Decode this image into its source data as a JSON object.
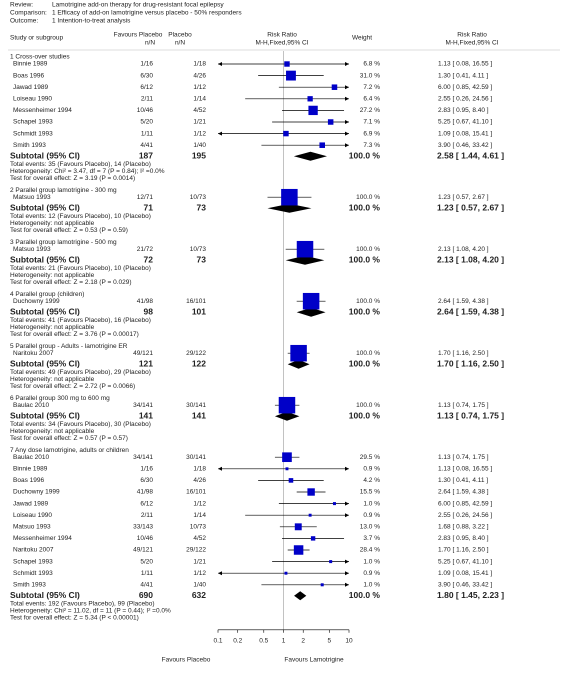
{
  "chart_data": {
    "type": "forest",
    "header": [
      {
        "label": "Review:",
        "text": "Lamotrigine add-on therapy for drug-resistant focal epilepsy"
      },
      {
        "label": "Comparison:",
        "text": "1 Efficacy of add-on lamotrigine versus placebo - 50% responders"
      },
      {
        "label": "Outcome:",
        "text": "1 Intention-to-treat analysis"
      }
    ],
    "columns": [
      {
        "title": "Study or subgroup"
      },
      {
        "title": "Favours Placebo",
        "sub": "n/N"
      },
      {
        "title": "Placebo",
        "sub": "n/N"
      },
      {
        "title": "Risk Ratio",
        "sub": "M-H,Fixed,95% CI"
      },
      {
        "title": "Weight"
      },
      {
        "title": "Risk Ratio",
        "sub": "M-H,Fixed,95% CI"
      }
    ],
    "log": true,
    "xlim": [
      0.1,
      10
    ],
    "xticks": [
      0.1,
      0.2,
      0.5,
      1,
      2,
      5,
      10
    ],
    "reference_line": 1,
    "x_label_left": "Favours Placebo",
    "x_label_right": "Favours Lamotrigine",
    "color": "#0000c8",
    "groups": [
      {
        "title": "1 Cross-over studies",
        "studies": [
          {
            "name": "Binnie 1989",
            "treat": "1/16",
            "ctrl": "1/18",
            "weight": 6.8,
            "weight_label": "6.8 %",
            "rr": 1.13,
            "lo": 0.08,
            "hi": 16.55,
            "ci_label": "1.13 [ 0.08, 16.55 ]"
          },
          {
            "name": "Boas 1996",
            "treat": "6/30",
            "ctrl": "4/26",
            "weight": 31.0,
            "weight_label": "31.0 %",
            "rr": 1.3,
            "lo": 0.41,
            "hi": 4.11,
            "ci_label": "1.30 [ 0.41, 4.11 ]"
          },
          {
            "name": "Jawad 1989",
            "treat": "6/12",
            "ctrl": "1/12",
            "weight": 7.2,
            "weight_label": "7.2 %",
            "rr": 6.0,
            "lo": 0.85,
            "hi": 42.59,
            "ci_label": "6.00 [ 0.85, 42.59 ]"
          },
          {
            "name": "Loiseau 1990",
            "treat": "2/11",
            "ctrl": "1/14",
            "weight": 6.4,
            "weight_label": "6.4 %",
            "rr": 2.55,
            "lo": 0.26,
            "hi": 24.56,
            "ci_label": "2.55 [ 0.26, 24.56 ]"
          },
          {
            "name": "Messenheimer 1994",
            "treat": "10/46",
            "ctrl": "4/52",
            "weight": 27.2,
            "weight_label": "27.2 %",
            "rr": 2.83,
            "lo": 0.95,
            "hi": 8.4,
            "ci_label": "2.83 [ 0.95, 8.40 ]"
          },
          {
            "name": "Schapel 1993",
            "treat": "5/20",
            "ctrl": "1/21",
            "weight": 7.1,
            "weight_label": "7.1 %",
            "rr": 5.25,
            "lo": 0.67,
            "hi": 41.1,
            "ci_label": "5.25 [ 0.67, 41.10 ]"
          },
          {
            "name": "Schmidt 1993",
            "treat": "1/11",
            "ctrl": "1/12",
            "weight": 6.9,
            "weight_label": "6.9 %",
            "rr": 1.09,
            "lo": 0.08,
            "hi": 15.41,
            "ci_label": "1.09 [ 0.08, 15.41 ]"
          },
          {
            "name": "Smith 1993",
            "treat": "4/41",
            "ctrl": "1/40",
            "weight": 7.3,
            "weight_label": "7.3 %",
            "rr": 3.9,
            "lo": 0.46,
            "hi": 33.42,
            "ci_label": "3.90 [ 0.46, 33.42 ]"
          }
        ],
        "subtotal": {
          "label": "Subtotal (95% CI)",
          "treat_total": 187,
          "ctrl_total": 195,
          "weight_label": "100.0 %",
          "rr": 2.58,
          "lo": 1.44,
          "hi": 4.61,
          "ci_label": "2.58 [ 1.44, 4.61 ]"
        },
        "notes": [
          "Total events: 35 (Favours Placebo), 14 (Placebo)",
          "Heterogeneity: Chi² = 3.47, df = 7 (P = 0.84); I² =0.0%",
          "Test for overall effect: Z = 3.19 (P = 0.0014)"
        ]
      },
      {
        "title": "2 Parallel group lamotrigine - 300 mg",
        "studies": [
          {
            "name": "Matsuo 1993",
            "treat": "12/71",
            "ctrl": "10/73",
            "weight": 100.0,
            "weight_label": "100.0 %",
            "rr": 1.23,
            "lo": 0.57,
            "hi": 2.67,
            "ci_label": "1.23 [ 0.57, 2.67 ]"
          }
        ],
        "subtotal": {
          "label": "Subtotal (95% CI)",
          "treat_total": 71,
          "ctrl_total": 73,
          "weight_label": "100.0 %",
          "rr": 1.23,
          "lo": 0.57,
          "hi": 2.67,
          "ci_label": "1.23 [ 0.57, 2.67 ]"
        },
        "notes": [
          "Total events: 12 (Favours Placebo), 10 (Placebo)",
          "Heterogeneity: not applicable",
          "Test for overall effect: Z = 0.53 (P = 0.59)"
        ]
      },
      {
        "title": "3 Parallel group lamotrigine - 500 mg",
        "studies": [
          {
            "name": "Matsuo 1993",
            "treat": "21/72",
            "ctrl": "10/73",
            "weight": 100.0,
            "weight_label": "100.0 %",
            "rr": 2.13,
            "lo": 1.08,
            "hi": 4.2,
            "ci_label": "2.13 [ 1.08, 4.20 ]"
          }
        ],
        "subtotal": {
          "label": "Subtotal (95% CI)",
          "treat_total": 72,
          "ctrl_total": 73,
          "weight_label": "100.0 %",
          "rr": 2.13,
          "lo": 1.08,
          "hi": 4.2,
          "ci_label": "2.13 [ 1.08, 4.20 ]"
        },
        "notes": [
          "Total events: 21 (Favours Placebo), 10 (Placebo)",
          "Heterogeneity: not applicable",
          "Test for overall effect: Z = 2.18 (P = 0.029)"
        ]
      },
      {
        "title": "4 Parallel group (children)",
        "studies": [
          {
            "name": "Duchowny 1999",
            "treat": "41/98",
            "ctrl": "16/101",
            "weight": 100.0,
            "weight_label": "100.0 %",
            "rr": 2.64,
            "lo": 1.59,
            "hi": 4.38,
            "ci_label": "2.64 [ 1.59, 4.38 ]"
          }
        ],
        "subtotal": {
          "label": "Subtotal (95% CI)",
          "treat_total": 98,
          "ctrl_total": 101,
          "weight_label": "100.0 %",
          "rr": 2.64,
          "lo": 1.59,
          "hi": 4.38,
          "ci_label": "2.64 [ 1.59, 4.38 ]"
        },
        "notes": [
          "Total events: 41 (Favours Placebo), 16 (Placebo)",
          "Heterogeneity: not applicable",
          "Test for overall effect: Z = 3.76 (P = 0.00017)"
        ]
      },
      {
        "title": "5 Parallel group - Adults - lamotrigine ER",
        "studies": [
          {
            "name": "Naritoku 2007",
            "treat": "49/121",
            "ctrl": "29/122",
            "weight": 100.0,
            "weight_label": "100.0 %",
            "rr": 1.7,
            "lo": 1.16,
            "hi": 2.5,
            "ci_label": "1.70 [ 1.16, 2.50 ]"
          }
        ],
        "subtotal": {
          "label": "Subtotal (95% CI)",
          "treat_total": 121,
          "ctrl_total": 122,
          "weight_label": "100.0 %",
          "rr": 1.7,
          "lo": 1.16,
          "hi": 2.5,
          "ci_label": "1.70 [ 1.16, 2.50 ]"
        },
        "notes": [
          "Total events: 49 (Favours Placebo), 29 (Placebo)",
          "Heterogeneity: not applicable",
          "Test for overall effect: Z = 2.72 (P = 0.0066)"
        ]
      },
      {
        "title": "6 Parallel group 300 mg to 600 mg",
        "studies": [
          {
            "name": "Baulac 2010",
            "treat": "34/141",
            "ctrl": "30/141",
            "weight": 100.0,
            "weight_label": "100.0 %",
            "rr": 1.13,
            "lo": 0.74,
            "hi": 1.75,
            "ci_label": "1.13 [ 0.74, 1.75 ]"
          }
        ],
        "subtotal": {
          "label": "Subtotal (95% CI)",
          "treat_total": 141,
          "ctrl_total": 141,
          "weight_label": "100.0 %",
          "rr": 1.13,
          "lo": 0.74,
          "hi": 1.75,
          "ci_label": "1.13 [ 0.74, 1.75 ]"
        },
        "notes": [
          "Total events: 34 (Favours Placebo), 30 (Placebo)",
          "Heterogeneity: not applicable",
          "Test for overall effect: Z = 0.57 (P = 0.57)"
        ]
      },
      {
        "title": "7 Any dose lamotrigine, adults or children",
        "studies": [
          {
            "name": "Baulac 2010",
            "treat": "34/141",
            "ctrl": "30/141",
            "weight": 29.5,
            "weight_label": "29.5 %",
            "rr": 1.13,
            "lo": 0.74,
            "hi": 1.75,
            "ci_label": "1.13 [ 0.74, 1.75 ]"
          },
          {
            "name": "Binnie 1989",
            "treat": "1/16",
            "ctrl": "1/18",
            "weight": 0.9,
            "weight_label": "0.9 %",
            "rr": 1.13,
            "lo": 0.08,
            "hi": 16.55,
            "ci_label": "1.13 [ 0.08, 16.55 ]"
          },
          {
            "name": "Boas 1996",
            "treat": "6/30",
            "ctrl": "4/26",
            "weight": 4.2,
            "weight_label": "4.2 %",
            "rr": 1.3,
            "lo": 0.41,
            "hi": 4.11,
            "ci_label": "1.30 [ 0.41, 4.11 ]"
          },
          {
            "name": "Duchowny 1999",
            "treat": "41/98",
            "ctrl": "16/101",
            "weight": 15.5,
            "weight_label": "15.5 %",
            "rr": 2.64,
            "lo": 1.59,
            "hi": 4.38,
            "ci_label": "2.64 [ 1.59, 4.38 ]"
          },
          {
            "name": "Jawad 1989",
            "treat": "6/12",
            "ctrl": "1/12",
            "weight": 1.0,
            "weight_label": "1.0 %",
            "rr": 6.0,
            "lo": 0.85,
            "hi": 42.59,
            "ci_label": "6.00 [ 0.85, 42.59 ]"
          },
          {
            "name": "Loiseau 1990",
            "treat": "2/11",
            "ctrl": "1/14",
            "weight": 0.9,
            "weight_label": "0.9 %",
            "rr": 2.55,
            "lo": 0.26,
            "hi": 24.56,
            "ci_label": "2.55 [ 0.26, 24.56 ]"
          },
          {
            "name": "Matsuo 1993",
            "treat": "33/143",
            "ctrl": "10/73",
            "weight": 13.0,
            "weight_label": "13.0 %",
            "rr": 1.68,
            "lo": 0.88,
            "hi": 3.22,
            "ci_label": "1.68 [ 0.88, 3.22 ]"
          },
          {
            "name": "Messenheimer 1994",
            "treat": "10/46",
            "ctrl": "4/52",
            "weight": 3.7,
            "weight_label": "3.7 %",
            "rr": 2.83,
            "lo": 0.95,
            "hi": 8.4,
            "ci_label": "2.83 [ 0.95, 8.40 ]"
          },
          {
            "name": "Naritoku 2007",
            "treat": "49/121",
            "ctrl": "29/122",
            "weight": 28.4,
            "weight_label": "28.4 %",
            "rr": 1.7,
            "lo": 1.16,
            "hi": 2.5,
            "ci_label": "1.70 [ 1.16, 2.50 ]"
          },
          {
            "name": "Schapel 1993",
            "treat": "5/20",
            "ctrl": "1/21",
            "weight": 1.0,
            "weight_label": "1.0 %",
            "rr": 5.25,
            "lo": 0.67,
            "hi": 41.1,
            "ci_label": "5.25 [ 0.67, 41.10 ]"
          },
          {
            "name": "Schmidt 1993",
            "treat": "1/11",
            "ctrl": "1/12",
            "weight": 0.9,
            "weight_label": "0.9 %",
            "rr": 1.09,
            "lo": 0.08,
            "hi": 15.41,
            "ci_label": "1.09 [ 0.08, 15.41 ]"
          },
          {
            "name": "Smith 1993",
            "treat": "4/41",
            "ctrl": "1/40",
            "weight": 1.0,
            "weight_label": "1.0 %",
            "rr": 3.9,
            "lo": 0.46,
            "hi": 33.42,
            "ci_label": "3.90 [ 0.46, 33.42 ]"
          }
        ],
        "subtotal": {
          "label": "Subtotal (95% CI)",
          "treat_total": 690,
          "ctrl_total": 632,
          "weight_label": "100.0 %",
          "rr": 1.8,
          "lo": 1.45,
          "hi": 2.23,
          "ci_label": "1.80 [ 1.45, 2.23 ]"
        },
        "notes": [
          "Total events: 192 (Favours Placebo), 99 (Placebo)",
          "Heterogeneity: Chi² = 11.02, df = 11 (P = 0.44); I² =0.0%",
          "Test for overall effect: Z = 5.34 (P < 0.00001)"
        ]
      }
    ]
  }
}
